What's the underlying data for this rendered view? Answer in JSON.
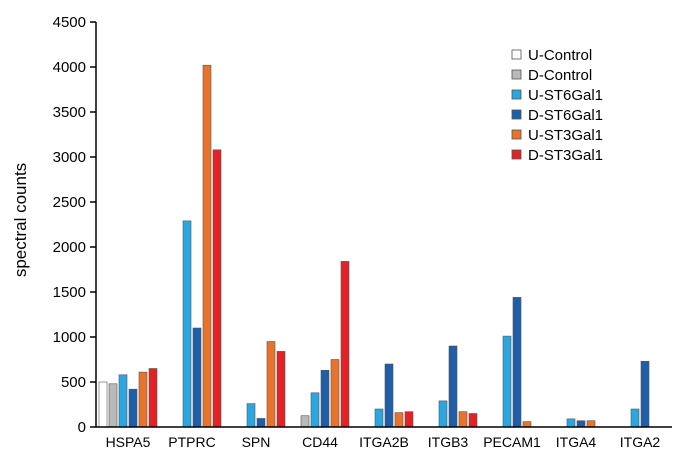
{
  "chart_data": {
    "type": "bar",
    "ylabel": "spectral counts",
    "ylim": [
      0,
      4500
    ],
    "yticks": [
      0,
      500,
      1000,
      1500,
      2000,
      2500,
      3000,
      3500,
      4000,
      4500
    ],
    "categories": [
      "HSPA5",
      "PTPRC",
      "SPN",
      "CD44",
      "ITGA2B",
      "ITGB3",
      "PECAM1",
      "ITGA4",
      "ITGA2"
    ],
    "legend_position": "top-right",
    "grid": false,
    "series": [
      {
        "name": "U-Control",
        "color": "#ffffff",
        "values": [
          500,
          0,
          0,
          0,
          0,
          0,
          0,
          0,
          0
        ]
      },
      {
        "name": "D-Control",
        "color": "#b9b9b9",
        "values": [
          480,
          0,
          0,
          125,
          0,
          0,
          0,
          0,
          0
        ]
      },
      {
        "name": "U-ST6Gal1",
        "color": "#2aa7e0",
        "values": [
          580,
          2290,
          260,
          380,
          200,
          290,
          1010,
          90,
          200
        ]
      },
      {
        "name": "D-ST6Gal1",
        "color": "#1f5ea8",
        "values": [
          420,
          1100,
          95,
          630,
          700,
          900,
          1440,
          70,
          730
        ]
      },
      {
        "name": "U-ST3Gal1",
        "color": "#e8732a",
        "values": [
          610,
          4020,
          950,
          750,
          160,
          170,
          60,
          70,
          0
        ]
      },
      {
        "name": "D-ST3Gal1",
        "color": "#e32226",
        "values": [
          650,
          3080,
          840,
          1840,
          170,
          150,
          0,
          0,
          0
        ]
      }
    ]
  }
}
